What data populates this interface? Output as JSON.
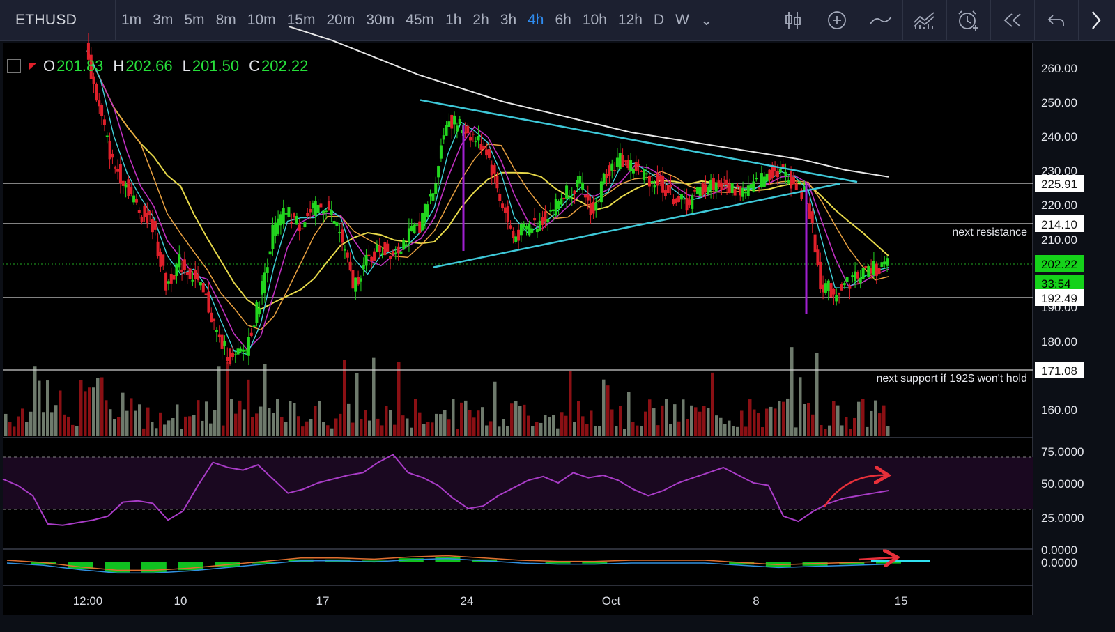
{
  "symbol": "ETHUSD",
  "intervals": [
    "1m",
    "3m",
    "5m",
    "8m",
    "10m",
    "15m",
    "20m",
    "30m",
    "45m",
    "1h",
    "2h",
    "3h",
    "4h",
    "6h",
    "10h",
    "12h",
    "D",
    "W"
  ],
  "active_interval": "4h",
  "tools": [
    "candle-type-icon",
    "add-indicator-icon",
    "line-icon",
    "compare-icon",
    "alert-icon",
    "replay-icon",
    "undo-icon",
    "more-arrow-icon"
  ],
  "legend": {
    "o_label": "O",
    "o": "201.83",
    "h_label": "H",
    "h": "202.66",
    "l_label": "L",
    "l": "201.50",
    "c_label": "C",
    "c": "202.22"
  },
  "price_axis": [
    "260.00",
    "250.00",
    "240.00",
    "230.00",
    "220.00",
    "210.00",
    "190.00",
    "180.00",
    "160.00"
  ],
  "rsi_axis": [
    "75.0000",
    "50.0000",
    "25.0000",
    "0.0000"
  ],
  "macd_axis": [
    "0.0000"
  ],
  "time_axis": [
    "12:00",
    "10",
    "17",
    "24",
    "Oct",
    "8",
    "15"
  ],
  "price_tags": {
    "current": "202.22",
    "countdown": "33:54",
    "level1": "225.91",
    "level2": "214.10",
    "level3": "192.49",
    "level4": "171.08"
  },
  "annotations": {
    "resistance": "next resistance",
    "support": "next support if 192$ won't hold"
  },
  "colors": {
    "up": "#22d61e",
    "down": "#e0202a",
    "cyan": "#3ec8d8",
    "white_ma": "#e8e8e8",
    "yellow_ma": "#e6d84a",
    "rsi": "#a93cc7",
    "accent": "#2f8cf0"
  },
  "chart_data": {
    "type": "line",
    "title": "ETHUSD 4h",
    "ylim": [
      150,
      265
    ],
    "y_label": "",
    "x_ticks": [
      "12:00",
      "10",
      "17",
      "24",
      "Oct",
      "8",
      "15"
    ],
    "close_series": {
      "name": "",
      "values": [
        265,
        248,
        232,
        226,
        218,
        214,
        196,
        203,
        199,
        192,
        180,
        174,
        178,
        192,
        212,
        218,
        214,
        218,
        220,
        212,
        196,
        203,
        207,
        206,
        210,
        214,
        224,
        245,
        243,
        240,
        236,
        222,
        210,
        213,
        215,
        219,
        224,
        226,
        217,
        230,
        233,
        231,
        228,
        226,
        222,
        220,
        224,
        226,
        225,
        224,
        225,
        229,
        230,
        226,
        222,
        197,
        194,
        197,
        200,
        201,
        202
      ]
    },
    "ma200": {
      "values": [
        272,
        268,
        263,
        258,
        254,
        250,
        247,
        244,
        241,
        239,
        237,
        235,
        233,
        230,
        228
      ]
    },
    "horizontal_levels": [
      225.91,
      214.1,
      192.49,
      171.08
    ],
    "trendlines": [
      {
        "from_date": "Sep 21",
        "from": 250.5,
        "to_date": "Oct 12",
        "to": 226.5
      },
      {
        "from_date": "Sep 20",
        "from": 201.5,
        "to_date": "Oct 11",
        "to": 226
      }
    ],
    "rsi": {
      "ylim": [
        0,
        80
      ],
      "upper": 70,
      "lower": 30,
      "values": [
        53,
        48,
        40,
        18,
        17,
        19,
        21,
        24,
        35,
        36,
        34,
        21,
        28,
        48,
        66,
        62,
        60,
        64,
        53,
        42,
        45,
        50,
        53,
        56,
        58,
        66,
        72,
        58,
        54,
        48,
        38,
        30,
        32,
        40,
        46,
        52,
        55,
        50,
        58,
        54,
        56,
        52,
        45,
        40,
        44,
        50,
        54,
        58,
        62,
        56,
        50,
        48,
        24,
        20,
        28,
        34,
        38,
        40,
        42,
        44
      ]
    },
    "macd": {
      "ylim": [
        -2,
        1
      ],
      "values": [
        0,
        -0.2,
        -0.6,
        -0.9,
        -0.9,
        -0.7,
        -0.4,
        -0.1,
        0.2,
        0.2,
        0.1,
        0.3,
        0.4,
        0.2,
        0,
        -0.1,
        -0.1,
        0,
        0,
        0,
        -0.2,
        -0.4,
        -0.3,
        -0.2,
        -0.1
      ]
    }
  }
}
